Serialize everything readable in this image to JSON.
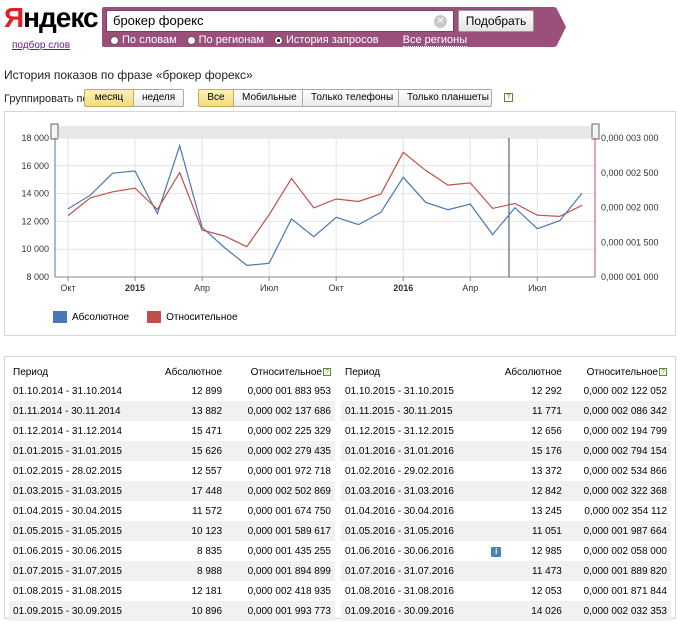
{
  "header": {
    "logo_first": "Я",
    "logo_rest": "ндекс",
    "logo_sub": "подбор слов",
    "query": "брокер форекс",
    "submit_label": "Подобрать",
    "modes": [
      {
        "label": "По словам",
        "selected": false
      },
      {
        "label": "По регионам",
        "selected": false
      },
      {
        "label": "История запросов",
        "selected": true
      }
    ],
    "region_label": "Все регионы"
  },
  "page": {
    "title": "История показов по фразе «брокер форекс»"
  },
  "filters": {
    "group_label": "Группировать по:",
    "periods": [
      {
        "label": "месяц",
        "active": true
      },
      {
        "label": "неделя",
        "active": false
      }
    ],
    "devices": [
      {
        "label": "Все",
        "active": true
      },
      {
        "label": "Мобильные",
        "active": false
      },
      {
        "label": "Только телефоны",
        "active": false
      },
      {
        "label": "Только планшеты",
        "active": false
      }
    ],
    "help": "?"
  },
  "chart_data": {
    "type": "line",
    "categories": [
      "2014-10",
      "2014-11",
      "2014-12",
      "2015-01",
      "2015-02",
      "2015-03",
      "2015-04",
      "2015-05",
      "2015-06",
      "2015-07",
      "2015-08",
      "2015-09",
      "2015-10",
      "2015-11",
      "2015-12",
      "2016-01",
      "2016-02",
      "2016-03",
      "2016-04",
      "2016-05",
      "2016-06",
      "2016-07",
      "2016-08",
      "2016-09"
    ],
    "x_tick_labels": [
      "Окт",
      "2015",
      "Апр",
      "Июл",
      "Окт",
      "2016",
      "Апр",
      "Июл"
    ],
    "y_left": {
      "ticks": [
        "8 000",
        "10 000",
        "12 000",
        "14 000",
        "16 000",
        "18 000"
      ],
      "range": [
        8000,
        18000
      ]
    },
    "y_right": {
      "ticks": [
        "0,000 001 000",
        "0,000 001 500",
        "0,000 002 000",
        "0,000 002 500",
        "0,000 003 000"
      ],
      "range": [
        1e-06,
        3e-06
      ]
    },
    "series": [
      {
        "name": "Абсолютное",
        "color": "#4a78b5",
        "axis": "left",
        "values": [
          12899,
          13882,
          15471,
          15626,
          12557,
          17448,
          11572,
          10123,
          8835,
          8988,
          12181,
          10896,
          12292,
          11771,
          12656,
          15176,
          13372,
          12842,
          13245,
          11051,
          12985,
          11473,
          12053,
          14026
        ]
      },
      {
        "name": "Относительное",
        "color": "#c0504d",
        "axis": "right",
        "values": [
          1.883953e-06,
          2.137686e-06,
          2.225329e-06,
          2.279435e-06,
          1.972718e-06,
          2.502869e-06,
          1.67475e-06,
          1.589617e-06,
          1.435255e-06,
          1.894899e-06,
          2.418935e-06,
          1.993773e-06,
          2.122052e-06,
          2.086342e-06,
          2.194799e-06,
          2.794154e-06,
          2.534866e-06,
          2.322368e-06,
          2.354112e-06,
          1.987664e-06,
          2.058e-06,
          1.88982e-06,
          1.871844e-06,
          2.032353e-06
        ]
      }
    ],
    "grid": true,
    "legend": "bottom-left"
  },
  "table": {
    "headers": [
      "Период",
      "Абсолютное",
      "Относительное"
    ],
    "help": "?",
    "info": "i",
    "left_rows": [
      [
        "01.10.2014 - 31.10.2014",
        "12 899",
        "0,000 001 883 953"
      ],
      [
        "01.11.2014 - 30.11.2014",
        "13 882",
        "0,000 002 137 686"
      ],
      [
        "01.12.2014 - 31.12.2014",
        "15 471",
        "0,000 002 225 329"
      ],
      [
        "01.01.2015 - 31.01.2015",
        "15 626",
        "0,000 002 279 435"
      ],
      [
        "01.02.2015 - 28.02.2015",
        "12 557",
        "0,000 001 972 718"
      ],
      [
        "01.03.2015 - 31.03.2015",
        "17 448",
        "0,000 002 502 869"
      ],
      [
        "01.04.2015 - 30.04.2015",
        "11 572",
        "0,000 001 674 750"
      ],
      [
        "01.05.2015 - 31.05.2015",
        "10 123",
        "0,000 001 589 617"
      ],
      [
        "01.06.2015 - 30.06.2015",
        "8 835",
        "0,000 001 435 255"
      ],
      [
        "01.07.2015 - 31.07.2015",
        "8 988",
        "0,000 001 894 899"
      ],
      [
        "01.08.2015 - 31.08.2015",
        "12 181",
        "0,000 002 418 935"
      ],
      [
        "01.09.2015 - 30.09.2015",
        "10 896",
        "0,000 001 993 773"
      ]
    ],
    "right_rows": [
      [
        "01.10.2015 - 31.10.2015",
        "12 292",
        "0,000 002 122 052"
      ],
      [
        "01.11.2015 - 30.11.2015",
        "11 771",
        "0,000 002 086 342"
      ],
      [
        "01.12.2015 - 31.12.2015",
        "12 656",
        "0,000 002 194 799"
      ],
      [
        "01.01.2016 - 31.01.2016",
        "15 176",
        "0,000 002 794 154"
      ],
      [
        "01.02.2016 - 29.02.2016",
        "13 372",
        "0,000 002 534 866"
      ],
      [
        "01.03.2016 - 31.03.2016",
        "12 842",
        "0,000 002 322 368"
      ],
      [
        "01.04.2016 - 30.04.2016",
        "13 245",
        "0,000 002 354 112"
      ],
      [
        "01.05.2016 - 31.05.2016",
        "11 051",
        "0,000 001 987 664"
      ],
      [
        "01.06.2016 - 30.06.2016",
        "12 985",
        "0,000 002 058 000"
      ],
      [
        "01.07.2016 - 31.07.2016",
        "11 473",
        "0,000 001 889 820"
      ],
      [
        "01.08.2016 - 31.08.2016",
        "12 053",
        "0,000 001 871 844"
      ],
      [
        "01.09.2016 - 30.09.2016",
        "14 026",
        "0,000 002 032 353"
      ]
    ]
  }
}
